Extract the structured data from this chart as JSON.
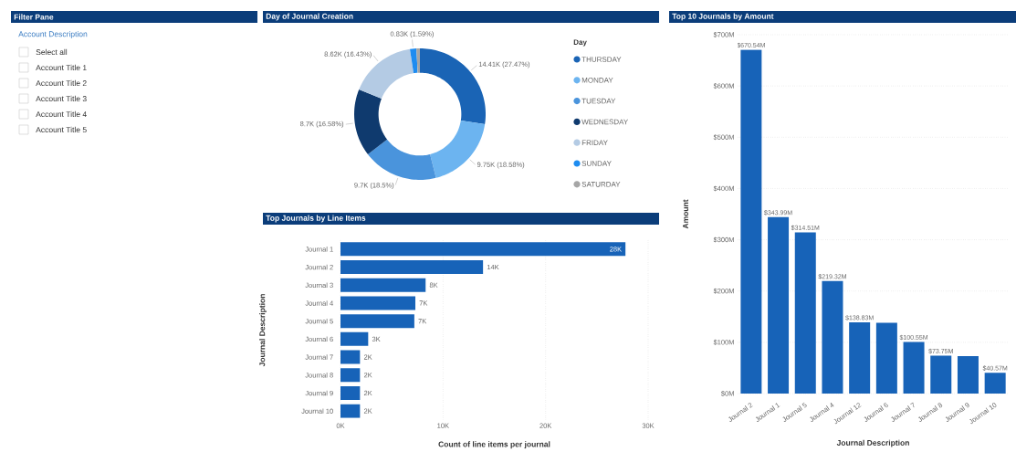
{
  "chart_data": [
    {
      "type": "other",
      "title": "Filter Pane",
      "subtitle": "Account Description",
      "annotations": [
        "Select all",
        "Account Title 1",
        "Account Title 2",
        "Account Title 3",
        "Account Title 4",
        "Account Title 5"
      ]
    },
    {
      "type": "donut",
      "title": "Day of Journal Creation",
      "legend_title": "Day",
      "legend": "right",
      "categories": [
        "THURSDAY",
        "MONDAY",
        "TUESDAY",
        "WEDNESDAY",
        "FRIDAY",
        "SUNDAY",
        "SATURDAY"
      ],
      "values": [
        14410,
        9750,
        9700,
        8700,
        8620,
        830,
        450
      ],
      "colors": [
        "#1a64b5",
        "#6cb4f0",
        "#4a94dc",
        "#0f3a6e",
        "#b4cbe4",
        "#1e8cf0",
        "#a6a6a6"
      ],
      "value_labels": [
        "14.41K (27.47%)",
        "9.75K (18.58%)",
        "9.7K (18.5%)",
        "8.7K (16.58%)",
        "8.62K (16.43%)",
        "0.83K (1.59%)",
        null
      ]
    },
    {
      "type": "bar",
      "title": "Top 10 Journals by Amount",
      "xlabel": "Journal Description",
      "ylabel": "Amount",
      "categories": [
        "Journal 2",
        "Journal 1",
        "Journal 5",
        "Journal 4",
        "Journal 12",
        "Journal 6",
        "Journal 7",
        "Journal 8",
        "Journal 9",
        "Journal 10"
      ],
      "values": [
        670.54,
        343.99,
        314.51,
        219.32,
        138.83,
        138,
        100.55,
        73.75,
        73,
        40.57
      ],
      "value_labels": [
        "$670.54M",
        "$343.99M",
        "$314.51M",
        "$219.32M",
        "$138.83M",
        null,
        "$100.55M",
        "$73.75M",
        null,
        "$40.57M"
      ],
      "color": "#1763b8",
      "ylim": [
        0,
        700
      ],
      "yticks": [
        {
          "value": 0,
          "label": "$0M"
        },
        {
          "value": 100,
          "label": "$100M"
        },
        {
          "value": 200,
          "label": "$200M"
        },
        {
          "value": 300,
          "label": "$300M"
        },
        {
          "value": 400,
          "label": "$400M"
        },
        {
          "value": 500,
          "label": "$500M"
        },
        {
          "value": 600,
          "label": "$600M"
        },
        {
          "value": 700,
          "label": "$700M"
        }
      ],
      "grid": "y"
    },
    {
      "type": "bar",
      "orientation": "horizontal",
      "title": "Top Journals by Line Items",
      "xlabel": "Count of line items per journal",
      "ylabel": "Journal Description",
      "categories": [
        "Journal 1",
        "Journal 2",
        "Journal 3",
        "Journal 4",
        "Journal 5",
        "Journal 6",
        "Journal 7",
        "Journal 8",
        "Journal 9",
        "Journal 10"
      ],
      "values": [
        27.8,
        13.9,
        8.3,
        7.3,
        7.2,
        2.7,
        1.9,
        1.9,
        1.9,
        1.9
      ],
      "value_labels": [
        "28K",
        "14K",
        "8K",
        "7K",
        "7K",
        "3K",
        "2K",
        "2K",
        "2K",
        "2K"
      ],
      "color": "#1763b8",
      "xlim": [
        0,
        30
      ],
      "xticks": [
        {
          "value": 0,
          "label": "0K"
        },
        {
          "value": 10,
          "label": "10K"
        },
        {
          "value": 20,
          "label": "20K"
        },
        {
          "value": 30,
          "label": "30K"
        }
      ],
      "grid": "x"
    }
  ]
}
